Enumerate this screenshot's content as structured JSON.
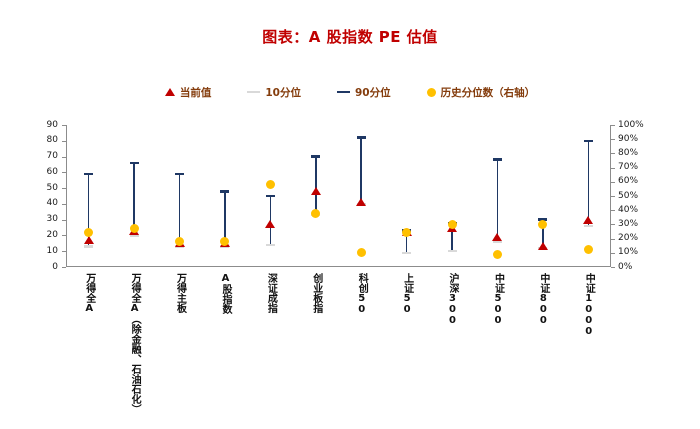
{
  "colors": {
    "title": "#c00000",
    "legend_text": "#843c0c",
    "current": "#c00000",
    "p10": "#d9d9d9",
    "p90": "#1f3864",
    "percentile": "#ffc000",
    "axis_line": "#8c8c8c",
    "axis_text": "#1a1a1a"
  },
  "legend": [
    {
      "label": "当前值",
      "marker": "triangle"
    },
    {
      "label": "10分位",
      "marker": "dash-light"
    },
    {
      "label": "90分位",
      "marker": "dash-dark"
    },
    {
      "label": "历史分位数（右轴）",
      "marker": "circle"
    }
  ],
  "chart_data": {
    "type": "range-marker",
    "title": "图表：A 股指数 PE 估值",
    "categories": [
      "万得全A",
      "万得全A（除金融、石油石化）",
      "万得主板",
      "A股指数",
      "深证成指",
      "创业板指",
      "科创50",
      "上证50",
      "沪深300",
      "中证500",
      "中证800",
      "中证1000"
    ],
    "series": [
      {
        "name": "当前值",
        "marker": "triangle",
        "axis": "left",
        "values": [
          17,
          23,
          15,
          15,
          27,
          48,
          41,
          22,
          25,
          19,
          13,
          30
        ]
      },
      {
        "name": "10分位",
        "marker": "dash",
        "axis": "left",
        "values": [
          13,
          20,
          13,
          13,
          14,
          33,
          40,
          9,
          10,
          16,
          12,
          26
        ]
      },
      {
        "name": "90分位",
        "marker": "dash",
        "axis": "left",
        "values": [
          59,
          66,
          59,
          48,
          45,
          70,
          82,
          23,
          28,
          68,
          30,
          80
        ]
      },
      {
        "name": "历史分位数（右轴）",
        "marker": "circle",
        "axis": "right",
        "values": [
          24,
          27,
          18,
          18,
          58,
          38,
          10,
          24,
          30,
          9,
          30,
          12
        ]
      }
    ],
    "left_axis": {
      "min": 0,
      "max": 90,
      "step": 10,
      "suffix": ""
    },
    "right_axis": {
      "min": 0,
      "max": 100,
      "step": 10,
      "suffix": "%"
    },
    "grid": false,
    "legend_position": "top"
  }
}
